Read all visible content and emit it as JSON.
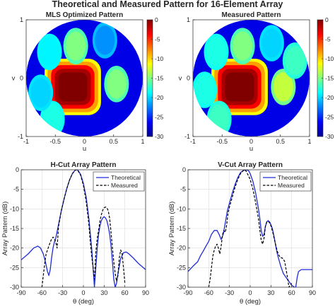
{
  "figure": {
    "title": "Theoretical and Measured Pattern for 16-Element Array"
  },
  "chart_data": [
    {
      "type": "heatmap",
      "title": "MLS Optimized Pattern",
      "xlabel": "u",
      "ylabel": "v",
      "xlim": [
        -1,
        1
      ],
      "ylim": [
        -1,
        1
      ],
      "xticks": [
        -1,
        -0.5,
        0,
        0.5,
        1
      ],
      "yticks": [
        -1,
        0,
        1
      ],
      "colorbar": {
        "min": -30,
        "max": 0,
        "ticks": [
          0,
          -5,
          -10,
          -15,
          -20,
          -25,
          -30
        ],
        "colormap": "jet"
      },
      "features": [
        {
          "u": -0.2,
          "v": -0.15,
          "level_db": 0
        },
        {
          "u": -0.15,
          "v": 0.55,
          "level_db": -15
        },
        {
          "u": -0.6,
          "v": 0.45,
          "level_db": -19
        },
        {
          "u": -0.55,
          "v": -0.7,
          "level_db": -18
        },
        {
          "u": 0.55,
          "v": -0.1,
          "level_db": -15
        },
        {
          "u": -0.75,
          "v": -0.25,
          "level_db": -20
        },
        {
          "u": 0.35,
          "v": 0.65,
          "level_db": -22
        }
      ]
    },
    {
      "type": "heatmap",
      "title": "Measured Pattern",
      "xlabel": "u",
      "ylabel": "v",
      "xlim": [
        -1,
        1
      ],
      "ylim": [
        -1,
        1
      ],
      "xticks": [
        -1,
        -0.5,
        0,
        0.5,
        1
      ],
      "yticks": [
        -1,
        0,
        1
      ],
      "colorbar": {
        "min": -30,
        "max": 0,
        "ticks": [
          0,
          -5,
          -10,
          -15,
          -20,
          -25,
          -30
        ],
        "colormap": "jet"
      },
      "features": [
        {
          "u": -0.2,
          "v": -0.15,
          "level_db": 0
        },
        {
          "u": -0.15,
          "v": 0.55,
          "level_db": -15
        },
        {
          "u": -0.6,
          "v": 0.45,
          "level_db": -18
        },
        {
          "u": -0.55,
          "v": -0.7,
          "level_db": -17
        },
        {
          "u": 0.55,
          "v": -0.15,
          "level_db": -13
        },
        {
          "u": 0.75,
          "v": 0.3,
          "level_db": -17
        },
        {
          "u": 0.35,
          "v": 0.6,
          "level_db": -20
        },
        {
          "u": -0.8,
          "v": -0.2,
          "level_db": -18
        }
      ]
    },
    {
      "type": "line",
      "title": "H-Cut Array Pattern",
      "xlabel": "θ (deg)",
      "ylabel": "Array Pattern (dB)",
      "xlim": [
        -90,
        90
      ],
      "ylim": [
        -30,
        0
      ],
      "xticks": [
        -90,
        -60,
        -30,
        0,
        30,
        60,
        90
      ],
      "yticks": [
        0,
        -5,
        -10,
        -15,
        -20,
        -25,
        -30
      ],
      "grid": true,
      "legend": "top-right",
      "series": [
        {
          "name": "Theoretical",
          "style": "solid",
          "color": "#1f2bd6",
          "x": [
            -90,
            -80,
            -72,
            -66,
            -62,
            -58,
            -55,
            -52,
            -50,
            -48,
            -46,
            -44,
            -42,
            -40,
            -36,
            -32,
            -28,
            -24,
            -20,
            -16,
            -12,
            -10,
            -8,
            -4,
            0,
            4,
            8,
            12,
            14,
            16,
            18,
            20,
            22,
            24,
            26,
            28,
            30,
            32,
            34,
            36,
            38,
            40,
            42,
            44,
            46,
            48,
            50,
            54,
            58,
            62,
            66,
            72,
            80,
            90
          ],
          "y": [
            -23,
            -21.5,
            -20,
            -19.5,
            -20,
            -21.5,
            -23.5,
            -26,
            -27,
            -25.5,
            -22.5,
            -20,
            -18.5,
            -17.5,
            -14,
            -10.5,
            -7.5,
            -4.8,
            -2.6,
            -1,
            -0.1,
            0,
            -0.1,
            -1.2,
            -3.5,
            -7,
            -12.5,
            -20,
            -25,
            -30,
            -25,
            -20,
            -16.5,
            -14.3,
            -13,
            -12.3,
            -12,
            -12.3,
            -13,
            -14.5,
            -16.5,
            -19.5,
            -23.5,
            -28,
            -30,
            -29,
            -26.5,
            -22.7,
            -21.2,
            -21,
            -21.5,
            -22.5,
            -24,
            -25.5
          ]
        },
        {
          "name": "Measured",
          "style": "dashed",
          "color": "#000000",
          "x": [
            -60,
            -58,
            -56,
            -54,
            -52,
            -50,
            -48,
            -46,
            -44,
            -42,
            -40,
            -38,
            -36,
            -32,
            -28,
            -24,
            -20,
            -16,
            -12,
            -10,
            -8,
            -4,
            0,
            4,
            8,
            10,
            12,
            14,
            16,
            18,
            20,
            22,
            24,
            26,
            28,
            30,
            32,
            34,
            36,
            38,
            40,
            42,
            44,
            46,
            48,
            50,
            52,
            54,
            56,
            58,
            60
          ],
          "y": [
            -30,
            -27,
            -24,
            -21.5,
            -20.5,
            -19.5,
            -18.5,
            -17.7,
            -17.2,
            -17.5,
            -18.5,
            -20,
            -14.5,
            -10.5,
            -7.5,
            -4.8,
            -2.6,
            -1,
            -0.1,
            0,
            -0.2,
            -1.4,
            -4,
            -8,
            -14,
            -18.5,
            -22,
            -25,
            -28,
            -21,
            -17.5,
            -15.5,
            -13,
            -11.5,
            -10.3,
            -9.7,
            -9.5,
            -9.7,
            -10.5,
            -12.5,
            -16,
            -20,
            -23.5,
            -26.5,
            -28.5,
            -27,
            -22.5,
            -20.5,
            -21.5,
            -25,
            -29
          ]
        }
      ]
    },
    {
      "type": "line",
      "title": "V-Cut Array Pattern",
      "xlabel": "θ (deg)",
      "ylabel": "Array Pattern (dB)",
      "xlim": [
        -90,
        90
      ],
      "ylim": [
        -30,
        0
      ],
      "xticks": [
        -90,
        -60,
        -30,
        0,
        30,
        60,
        90
      ],
      "yticks": [
        0,
        -5,
        -10,
        -15,
        -20,
        -25,
        -30
      ],
      "grid": true,
      "legend": "top-right",
      "series": [
        {
          "name": "Theoretical",
          "style": "solid",
          "color": "#1f2bd6",
          "x": [
            -90,
            -82,
            -76,
            -72,
            -68,
            -64,
            -60,
            -56,
            -52,
            -48,
            -45,
            -42,
            -39,
            -36,
            -33,
            -30,
            -26,
            -22,
            -18,
            -14,
            -10,
            -6,
            -4,
            -2,
            0,
            4,
            8,
            12,
            14,
            16,
            18,
            20,
            22,
            24,
            26,
            28,
            30,
            32,
            34,
            36,
            38,
            40,
            44,
            48,
            52,
            56,
            60,
            64,
            66,
            68,
            70,
            74,
            80,
            90
          ],
          "y": [
            -26,
            -24.5,
            -23.5,
            -22,
            -20.8,
            -19.5,
            -18.3,
            -16.5,
            -15.5,
            -15.5,
            -16.5,
            -17.8,
            -16.5,
            -13.5,
            -10.5,
            -8.5,
            -6,
            -3.8,
            -2,
            -0.7,
            -0.2,
            0,
            -0.1,
            -0.3,
            -1,
            -3,
            -6,
            -10,
            -12.5,
            -15.5,
            -17,
            -16.5,
            -14.5,
            -13.3,
            -13,
            -13.3,
            -14,
            -15,
            -16.5,
            -18.5,
            -20.5,
            -22,
            -24.5,
            -26.5,
            -27.5,
            -28.5,
            -29.5,
            -30,
            -30,
            -27.5,
            -26,
            -25.5,
            -25.5,
            -25.5
          ]
        },
        {
          "name": "Measured",
          "style": "dashed",
          "color": "#000000",
          "x": [
            -60,
            -58,
            -56,
            -54,
            -52,
            -50,
            -48,
            -46,
            -44,
            -42,
            -40,
            -38,
            -36,
            -34,
            -32,
            -30,
            -26,
            -22,
            -18,
            -14,
            -10,
            -8,
            -6,
            -4,
            0,
            4,
            8,
            12,
            14,
            16,
            18,
            20,
            22,
            24,
            26,
            28,
            30,
            32,
            34,
            36,
            38,
            40,
            42,
            44,
            46,
            48,
            50,
            52,
            54,
            56,
            58,
            60
          ],
          "y": [
            -30,
            -28,
            -25,
            -22,
            -20.5,
            -19.5,
            -19,
            -20,
            -21.5,
            -19.5,
            -16.5,
            -15.5,
            -16,
            -14,
            -11,
            -9.5,
            -7,
            -4.5,
            -2.5,
            -1,
            -0.2,
            0,
            -0.3,
            -1,
            -2.5,
            -5,
            -8.5,
            -12.5,
            -15.5,
            -18,
            -19,
            -17.5,
            -14.5,
            -13.3,
            -13.2,
            -13.5,
            -14.3,
            -15.5,
            -17,
            -18.5,
            -20,
            -21.2,
            -22,
            -22.5,
            -22.5,
            -22.8,
            -23.5,
            -25.5,
            -27.5,
            -30,
            -29.5,
            -29
          ]
        }
      ]
    }
  ]
}
